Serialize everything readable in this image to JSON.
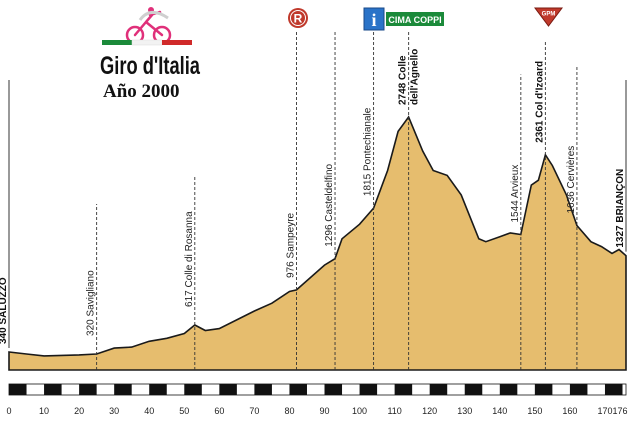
{
  "logo": {
    "name": "Giro d'Italia",
    "year": "Año 2000"
  },
  "markers": {
    "sprint_letter": "R",
    "info_letter": "i",
    "cima_coppi": "CIMA COPPI",
    "gpm": "GPM"
  },
  "colors": {
    "fill": "#e6bd6e",
    "outline": "#1a1a1a",
    "green_badge": "#1b8a3a",
    "red_circle": "#c0392b",
    "info_blue": "#2a73c8"
  },
  "chart_data": {
    "type": "area",
    "title": "",
    "xlabel": "",
    "ylabel": "",
    "xlim": [
      0,
      176
    ],
    "ylim": [
      0,
      3000
    ],
    "x_ticks": [
      0,
      10,
      20,
      30,
      40,
      50,
      60,
      70,
      80,
      90,
      100,
      110,
      120,
      130,
      140,
      150,
      160,
      170,
      176
    ],
    "profile": [
      [
        0,
        340
      ],
      [
        5,
        320
      ],
      [
        10,
        300
      ],
      [
        20,
        310
      ],
      [
        25,
        320
      ],
      [
        30,
        380
      ],
      [
        35,
        390
      ],
      [
        40,
        450
      ],
      [
        45,
        480
      ],
      [
        50,
        530
      ],
      [
        53,
        617
      ],
      [
        56,
        560
      ],
      [
        60,
        580
      ],
      [
        70,
        760
      ],
      [
        75,
        840
      ],
      [
        80,
        960
      ],
      [
        82,
        976
      ],
      [
        90,
        1230
      ],
      [
        93,
        1296
      ],
      [
        95,
        1500
      ],
      [
        100,
        1650
      ],
      [
        104,
        1815
      ],
      [
        108,
        2200
      ],
      [
        111,
        2600
      ],
      [
        114,
        2748
      ],
      [
        118,
        2400
      ],
      [
        121,
        2200
      ],
      [
        125,
        2150
      ],
      [
        129,
        1950
      ],
      [
        134,
        1500
      ],
      [
        136,
        1470
      ],
      [
        140,
        1520
      ],
      [
        143,
        1560
      ],
      [
        146,
        1544
      ],
      [
        149,
        2050
      ],
      [
        151,
        2100
      ],
      [
        153,
        2361
      ],
      [
        155,
        2250
      ],
      [
        159,
        1950
      ],
      [
        162,
        1636
      ],
      [
        166,
        1470
      ],
      [
        169,
        1420
      ],
      [
        172,
        1350
      ],
      [
        174,
        1390
      ],
      [
        176,
        1327
      ]
    ],
    "waypoints": [
      {
        "km": 0,
        "label": "340 SALUZZO",
        "bold": true
      },
      {
        "km": 25,
        "label": "320 Savigliano",
        "bold": false
      },
      {
        "km": 53,
        "label": "617 Colle di Rosanna",
        "bold": false
      },
      {
        "km": 82,
        "label": "976 Sampeyre",
        "bold": false
      },
      {
        "km": 93,
        "label": "1296 Casteldelfino",
        "bold": false
      },
      {
        "km": 104,
        "label": "1815 Pontechianale",
        "bold": false
      },
      {
        "km": 114,
        "label": "2748 Colle",
        "label2": "dell'Agnello",
        "bold": true
      },
      {
        "km": 146,
        "label": "1544 Arvieux",
        "bold": false
      },
      {
        "km": 153,
        "label": "2361 Col d'Izoard",
        "bold": true
      },
      {
        "km": 162,
        "label": "1636 Cervières",
        "bold": false
      },
      {
        "km": 176,
        "label": "1327 BRIANÇON",
        "bold": true
      }
    ]
  }
}
